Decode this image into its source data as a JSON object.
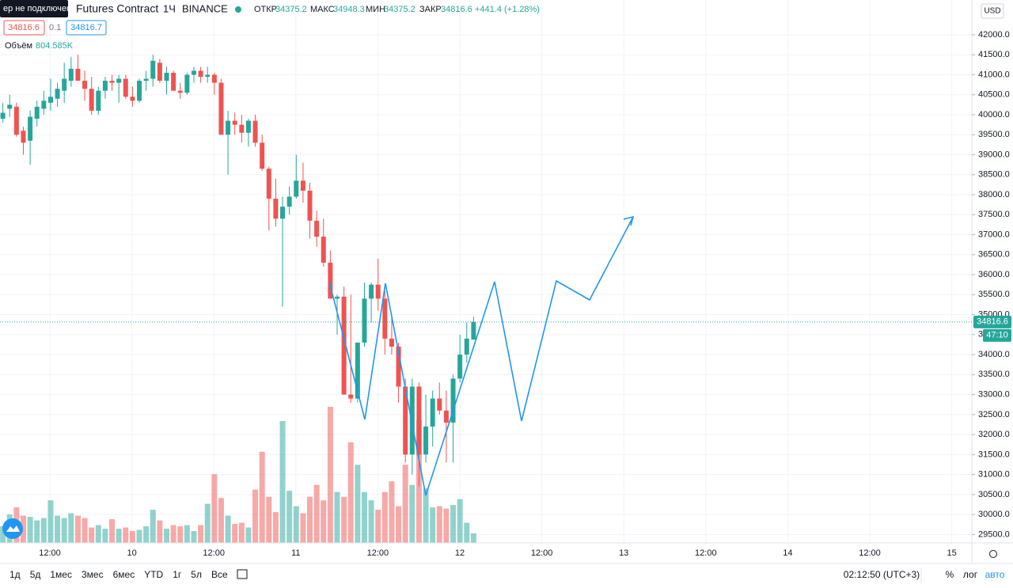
{
  "header": {
    "connection": "ер не подключен",
    "symbol": "Futures Contract",
    "interval": "1Ч",
    "exchange": "BINANCE",
    "open_label": "ОТКР",
    "high_label": "МАКС",
    "low_label": "МИН",
    "close_label": "ЗАКР",
    "change": "+441.4 (+1.28%)",
    "spread": "0.1",
    "ask": "34816.7",
    "volume_label": "Объём",
    "volume_value": "804.585K",
    "currency": "USD",
    "countdown": "47:10"
  },
  "chart_data": {
    "type": "candlestick",
    "open": [
      40250,
      39900,
      40150,
      40200,
      39600,
      39350,
      39900,
      40150,
      40300,
      40400,
      40600,
      40850,
      41150,
      40850,
      40650,
      40100,
      40600,
      40850,
      40800,
      40900,
      40450,
      40350,
      40850,
      40900,
      41300,
      40850,
      41050,
      40600,
      40550,
      41000,
      41100,
      40950,
      41000,
      40800,
      39500,
      39850,
      39750,
      39550,
      39850,
      39300,
      38650,
      37900,
      37400,
      37700,
      37950,
      38350,
      38100,
      37350,
      36950,
      36300,
      35400,
      35450,
      33000,
      32900,
      34300,
      35400,
      35750,
      35400,
      34400,
      34200,
      33200,
      31500,
      33200,
      31500,
      32200,
      32900,
      32600,
      32300,
      33400,
      34000,
      34375.2
    ],
    "high": [
      40600,
      40300,
      40500,
      40300,
      39700,
      40100,
      40350,
      40600,
      40900,
      40800,
      41300,
      41450,
      41500,
      41100,
      40950,
      40700,
      40950,
      41000,
      41000,
      41000,
      40700,
      40900,
      41100,
      41500,
      41400,
      41200,
      41100,
      40800,
      41050,
      41200,
      41200,
      41200,
      41050,
      40900,
      40100,
      40050,
      40000,
      39900,
      40000,
      39500,
      38700,
      38400,
      37950,
      38200,
      39000,
      38800,
      38300,
      37600,
      37400,
      36600,
      35500,
      35700,
      35500,
      34300,
      35800,
      35800,
      36400,
      35600,
      35000,
      34300,
      33400,
      33400,
      33300,
      33000,
      33100,
      33300,
      33100,
      33500,
      34500,
      34800,
      34948.3
    ],
    "low": [
      39500,
      39800,
      39950,
      39450,
      39000,
      38750,
      39700,
      40000,
      40100,
      40200,
      40300,
      40700,
      40850,
      40350,
      40000,
      40000,
      40400,
      40600,
      40300,
      40400,
      40200,
      40300,
      40600,
      40700,
      40800,
      40500,
      40600,
      40400,
      40500,
      40800,
      40800,
      40800,
      40500,
      39500,
      38500,
      39500,
      39300,
      39200,
      39200,
      38600,
      37100,
      37200,
      35200,
      37500,
      37900,
      37800,
      36900,
      36700,
      36200,
      35400,
      34500,
      33000,
      32800,
      32800,
      34200,
      34800,
      35100,
      34000,
      34000,
      32800,
      31300,
      31000,
      30700,
      31300,
      31700,
      32500,
      31300,
      31300,
      33300,
      33800,
      34375.2
    ],
    "close": [
      39800,
      40050,
      40250,
      39500,
      39300,
      39950,
      40200,
      40350,
      40450,
      40650,
      40900,
      41150,
      40850,
      40650,
      40100,
      40600,
      40850,
      40800,
      40900,
      40450,
      40350,
      40850,
      40900,
      41350,
      40850,
      41050,
      40600,
      40550,
      41000,
      41100,
      40950,
      41000,
      40800,
      39500,
      39850,
      39750,
      39550,
      39850,
      39300,
      38650,
      37900,
      37400,
      37700,
      37950,
      38350,
      38100,
      37350,
      36950,
      36300,
      35400,
      35450,
      33000,
      32900,
      34300,
      35400,
      35750,
      35400,
      34400,
      34200,
      33200,
      31500,
      33200,
      31500,
      32200,
      32900,
      32600,
      32300,
      33400,
      34000,
      34400,
      34816.6
    ],
    "volume": [
      1800,
      1400,
      2400,
      3000,
      2300,
      2200,
      1900,
      2100,
      3600,
      2300,
      2100,
      2500,
      2300,
      2100,
      1300,
      1500,
      1200,
      2000,
      1200,
      1300,
      1000,
      1100,
      1400,
      2800,
      1900,
      1200,
      1500,
      1400,
      1500,
      1000,
      1500,
      3300,
      5800,
      3800,
      2300,
      1600,
      1700,
      1300,
      4500,
      7700,
      3900,
      2600,
      10300,
      4400,
      3100,
      2500,
      3900,
      4900,
      3600,
      11500,
      4300,
      3900,
      8500,
      6600,
      4300,
      3600,
      2800,
      4300,
      5200,
      3100,
      6600,
      4900,
      10400,
      4600,
      3000,
      3100,
      2900,
      3200,
      3700,
      1700,
      804.585
    ],
    "up_color": "#26a69a",
    "down_color": "#ef5350",
    "ylim": [
      29290,
      42870
    ],
    "yticks": [
      {
        "value": 42000,
        "label": "42000.0"
      },
      {
        "value": 41500,
        "label": "41500.0"
      },
      {
        "value": 41000,
        "label": "41000.0"
      },
      {
        "value": 40500,
        "label": "40500.0"
      },
      {
        "value": 40000,
        "label": "40000.0"
      },
      {
        "value": 39500,
        "label": "39500.0"
      },
      {
        "value": 39000,
        "label": "39000.0"
      },
      {
        "value": 38500,
        "label": "38500.0"
      },
      {
        "value": 38000,
        "label": "38000.0"
      },
      {
        "value": 37500,
        "label": "37500.0"
      },
      {
        "value": 37000,
        "label": "37000.0"
      },
      {
        "value": 36500,
        "label": "36500.0"
      },
      {
        "value": 36000,
        "label": "36000.0"
      },
      {
        "value": 35500,
        "label": "35500.0"
      },
      {
        "value": 35000,
        "label": "35000.0"
      },
      {
        "value": 34500,
        "label": "34500.0"
      },
      {
        "value": 34000,
        "label": "34000.0"
      },
      {
        "value": 33500,
        "label": "33500.0"
      },
      {
        "value": 33000,
        "label": "33000.0"
      },
      {
        "value": 32500,
        "label": "32500.0"
      },
      {
        "value": 32000,
        "label": "32000.0"
      },
      {
        "value": 31500,
        "label": "31500.0"
      },
      {
        "value": 31000,
        "label": "31000.0"
      },
      {
        "value": 30500,
        "label": "30500.0"
      },
      {
        "value": 30000,
        "label": "30000.0"
      },
      {
        "value": 29500,
        "label": "29500.0"
      }
    ],
    "time_labels": [
      "12:00",
      "10",
      "12:00",
      "11",
      "12:00",
      "12",
      "12:00",
      "13",
      "12:00",
      "14",
      "12:00",
      "15"
    ],
    "grid": true
  },
  "toolbar": {
    "periods": [
      "1д",
      "5д",
      "1мес",
      "3мес",
      "6мес",
      "YTD",
      "1г",
      "5л",
      "Все"
    ],
    "clock": "02:12:50 (UTC+3)",
    "percent": "%",
    "log": "лог",
    "auto": "авто"
  }
}
